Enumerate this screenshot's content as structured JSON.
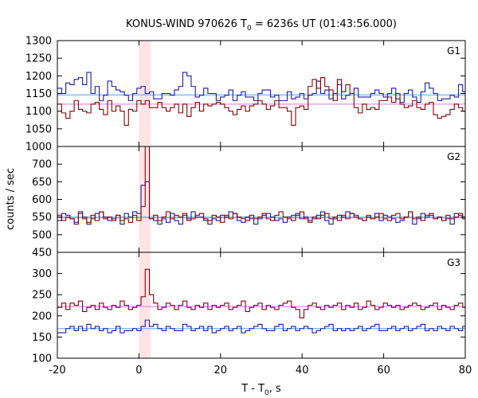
{
  "chart_data": {
    "type": "line",
    "title": "KONUS-WIND 970626 T",
    "title_sub": "0",
    "title_rest": " = 6236s UT (01:43:56.000)",
    "xlabel": "T - T",
    "xlabel_sub": "0",
    "xlabel_rest": ", s",
    "ylabel": "counts / sec",
    "xlim": [
      -20,
      80
    ],
    "xticks": [
      -20,
      0,
      20,
      40,
      60,
      80
    ],
    "bin_start": -19.968,
    "bin_width": 1.024,
    "highlight_interval": [
      0,
      2.816
    ],
    "highlight_color": "#ffe4e6",
    "panels": [
      {
        "label": "G1",
        "ylim": [
          1000,
          1300
        ],
        "yticks": [
          1050,
          1100,
          1150,
          1200,
          1250,
          1300
        ],
        "bottom_label": "1000",
        "series": [
          {
            "color": "#1a1aa8",
            "background": 1146,
            "background_color": "#6bb6ff",
            "values": [
              1165,
              1150,
              1180,
              1175,
              1190,
              1195,
              1175,
              1210,
              1150,
              1170,
              1130,
              1145,
              1185,
              1170,
              1160,
              1155,
              1145,
              1130,
              1150,
              1165,
              1170,
              1150,
              1155,
              1135,
              1135,
              1150,
              1150,
              1145,
              1160,
              1170,
              1210,
              1200,
              1170,
              1140,
              1145,
              1165,
              1150,
              1150,
              1130,
              1140,
              1145,
              1160,
              1130,
              1145,
              1155,
              1140,
              1140,
              1130,
              1150,
              1160,
              1160,
              1140,
              1145,
              1130,
              1130,
              1155,
              1135,
              1140,
              1150,
              1135,
              1145,
              1150,
              1185,
              1150,
              1160,
              1135,
              1150,
              1175,
              1135,
              1145,
              1150,
              1165,
              1140,
              1140,
              1140,
              1150,
              1160,
              1150,
              1140,
              1150,
              1165,
              1135,
              1125,
              1150,
              1160,
              1140,
              1125,
              1155,
              1180,
              1165,
              1150,
              1130,
              1135,
              1135,
              1145,
              1140,
              1175,
              1155,
              1165,
              1200
            ]
          },
          {
            "color": "#8b0000",
            "background": 1120,
            "background_color": "#e088e0",
            "values": [
              1120,
              1095,
              1080,
              1100,
              1130,
              1105,
              1100,
              1095,
              1120,
              1125,
              1105,
              1090,
              1130,
              1100,
              1115,
              1100,
              1060,
              1105,
              1100,
              1130,
              1120,
              1130,
              1110,
              1110,
              1125,
              1110,
              1100,
              1110,
              1120,
              1095,
              1120,
              1085,
              1110,
              1125,
              1100,
              1120,
              1115,
              1120,
              1125,
              1120,
              1110,
              1100,
              1090,
              1105,
              1115,
              1100,
              1115,
              1120,
              1130,
              1120,
              1105,
              1115,
              1130,
              1110,
              1110,
              1100,
              1060,
              1110,
              1115,
              1105,
              1170,
              1190,
              1165,
              1195,
              1170,
              1160,
              1130,
              1190,
              1155,
              1175,
              1150,
              1110,
              1095,
              1120,
              1105,
              1110,
              1105,
              1130,
              1130,
              1140,
              1125,
              1150,
              1120,
              1110,
              1115,
              1130,
              1110,
              1105,
              1120,
              1125,
              1090,
              1080,
              1085,
              1090,
              1105,
              1120,
              1110,
              1100,
              1095,
              1095
            ]
          }
        ]
      },
      {
        "label": "G2",
        "ylim": [
          450,
          750
        ],
        "yticks": [
          450,
          500,
          550,
          600,
          650,
          700
        ],
        "series": [
          {
            "color": "#1a1aa8",
            "background": 550,
            "background_color": "#6bb6ff",
            "values": [
              540,
              560,
              555,
              545,
              535,
              565,
              550,
              530,
              545,
              560,
              565,
              550,
              540,
              545,
              555,
              530,
              560,
              550,
              565,
              560,
              640,
              650,
              545,
              540,
              530,
              545,
              535,
              560,
              540,
              530,
              555,
              545,
              565,
              550,
              550,
              540,
              530,
              545,
              540,
              555,
              550,
              565,
              560,
              540,
              535,
              550,
              545,
              530,
              545,
              555,
              560,
              550,
              540,
              545,
              535,
              550,
              555,
              560,
              545,
              550,
              540,
              545,
              555,
              565,
              540,
              530,
              545,
              555,
              550,
              565,
              560,
              555,
              545,
              540,
              550,
              545,
              560,
              540,
              555,
              550,
              545,
              535,
              540,
              550,
              565,
              530,
              545,
              560,
              550,
              555,
              545,
              550,
              540,
              545,
              530,
              560,
              555,
              545,
              550,
              560
            ]
          },
          {
            "color": "#8b0000",
            "background": 548,
            "background_color": "#e088e0",
            "values": [
              555,
              540,
              550,
              545,
              530,
              560,
              545,
              535,
              555,
              540,
              565,
              545,
              550,
              540,
              555,
              540,
              545,
              535,
              555,
              540,
              580,
              750,
              545,
              555,
              540,
              550,
              565,
              545,
              555,
              550,
              560,
              540,
              545,
              555,
              560,
              545,
              540,
              555,
              550,
              535,
              555,
              545,
              560,
              550,
              545,
              540,
              555,
              545,
              550,
              560,
              545,
              540,
              555,
              565,
              550,
              545,
              540,
              555,
              565,
              545,
              535,
              550,
              545,
              555,
              560,
              545,
              550,
              540,
              555,
              545,
              560,
              550,
              545,
              540,
              555,
              545,
              550,
              560,
              545,
              540,
              555,
              560,
              545,
              550,
              565,
              545,
              550,
              540,
              555,
              560,
              545,
              550,
              540,
              555,
              545,
              550,
              560,
              545,
              540,
              555
            ]
          }
        ]
      },
      {
        "label": "G3",
        "ylim": [
          100,
          350
        ],
        "yticks": [
          100,
          150,
          200,
          250,
          300
        ],
        "series": [
          {
            "color": "#1a1aa8",
            "background": 170,
            "background_color": "#6bb6ff",
            "values": [
              160,
              160,
              170,
              175,
              165,
              175,
              165,
              180,
              170,
              175,
              165,
              170,
              160,
              165,
              175,
              160,
              165,
              165,
              170,
              165,
              175,
              190,
              175,
              180,
              170,
              165,
              175,
              170,
              165,
              165,
              180,
              175,
              165,
              170,
              175,
              165,
              175,
              160,
              165,
              170,
              175,
              165,
              170,
              175,
              160,
              165,
              170,
              175,
              180,
              170,
              165,
              165,
              175,
              180,
              165,
              170,
              175,
              165,
              170,
              175,
              170,
              160,
              165,
              170,
              175,
              180,
              165,
              170,
              165,
              170,
              165,
              170,
              175,
              165,
              170,
              175,
              180,
              165,
              165,
              170,
              175,
              165,
              170,
              175,
              165,
              170,
              175,
              180,
              165,
              170,
              165,
              175,
              170,
              165,
              175,
              170,
              165,
              175,
              175,
              165
            ]
          },
          {
            "color": "#8b0000",
            "background": 222,
            "background_color": "#e088e0",
            "values": [
              220,
              230,
              215,
              230,
              225,
              235,
              210,
              220,
              225,
              215,
              230,
              220,
              215,
              225,
              220,
              235,
              225,
              215,
              220,
              225,
              245,
              310,
              250,
              230,
              215,
              220,
              230,
              225,
              215,
              225,
              235,
              220,
              215,
              225,
              220,
              230,
              215,
              225,
              220,
              225,
              230,
              215,
              220,
              225,
              235,
              210,
              220,
              225,
              230,
              215,
              225,
              220,
              215,
              225,
              230,
              235,
              220,
              215,
              195,
              215,
              225,
              230,
              220,
              215,
              225,
              220,
              225,
              230,
              215,
              225,
              220,
              230,
              215,
              220,
              235,
              225,
              215,
              220,
              230,
              225,
              220,
              225,
              215,
              220,
              225,
              230,
              225,
              215,
              220,
              225,
              230,
              215,
              225,
              220,
              215,
              225,
              230,
              220,
              215,
              225
            ]
          }
        ]
      }
    ]
  }
}
